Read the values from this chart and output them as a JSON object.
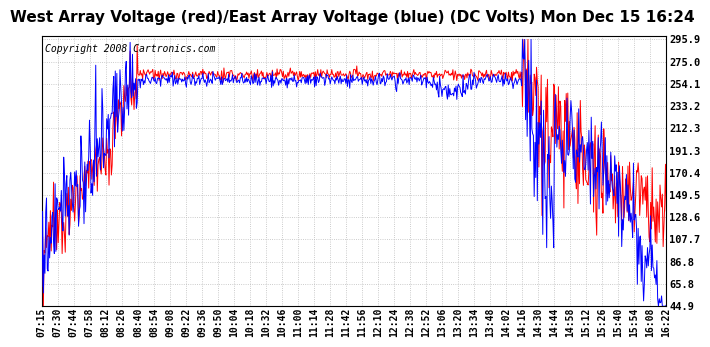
{
  "title": "West Array Voltage (red)/East Array Voltage (blue) (DC Volts) Mon Dec 15 16:24",
  "copyright_text": "Copyright 2008 Cartronics.com",
  "ylabel_values": [
    295.9,
    275.0,
    254.1,
    233.2,
    212.3,
    191.3,
    170.4,
    149.5,
    128.6,
    107.7,
    86.8,
    65.8,
    44.9
  ],
  "x_labels": [
    "07:15",
    "07:30",
    "07:44",
    "07:58",
    "08:12",
    "08:26",
    "08:40",
    "08:54",
    "09:08",
    "09:22",
    "09:36",
    "09:50",
    "10:04",
    "10:18",
    "10:32",
    "10:46",
    "11:00",
    "11:14",
    "11:28",
    "11:42",
    "11:56",
    "12:10",
    "12:24",
    "12:38",
    "12:52",
    "13:06",
    "13:20",
    "13:34",
    "13:48",
    "14:02",
    "14:16",
    "14:30",
    "14:44",
    "14:58",
    "15:12",
    "15:26",
    "15:40",
    "15:54",
    "16:08",
    "16:22"
  ],
  "bg_color": "#ffffff",
  "plot_bg_color": "#ffffff",
  "grid_color": "#bbbbbb",
  "title_fontsize": 11,
  "copyright_fontsize": 7,
  "tick_fontsize": 7,
  "y_min": 44.9,
  "y_max": 295.9
}
